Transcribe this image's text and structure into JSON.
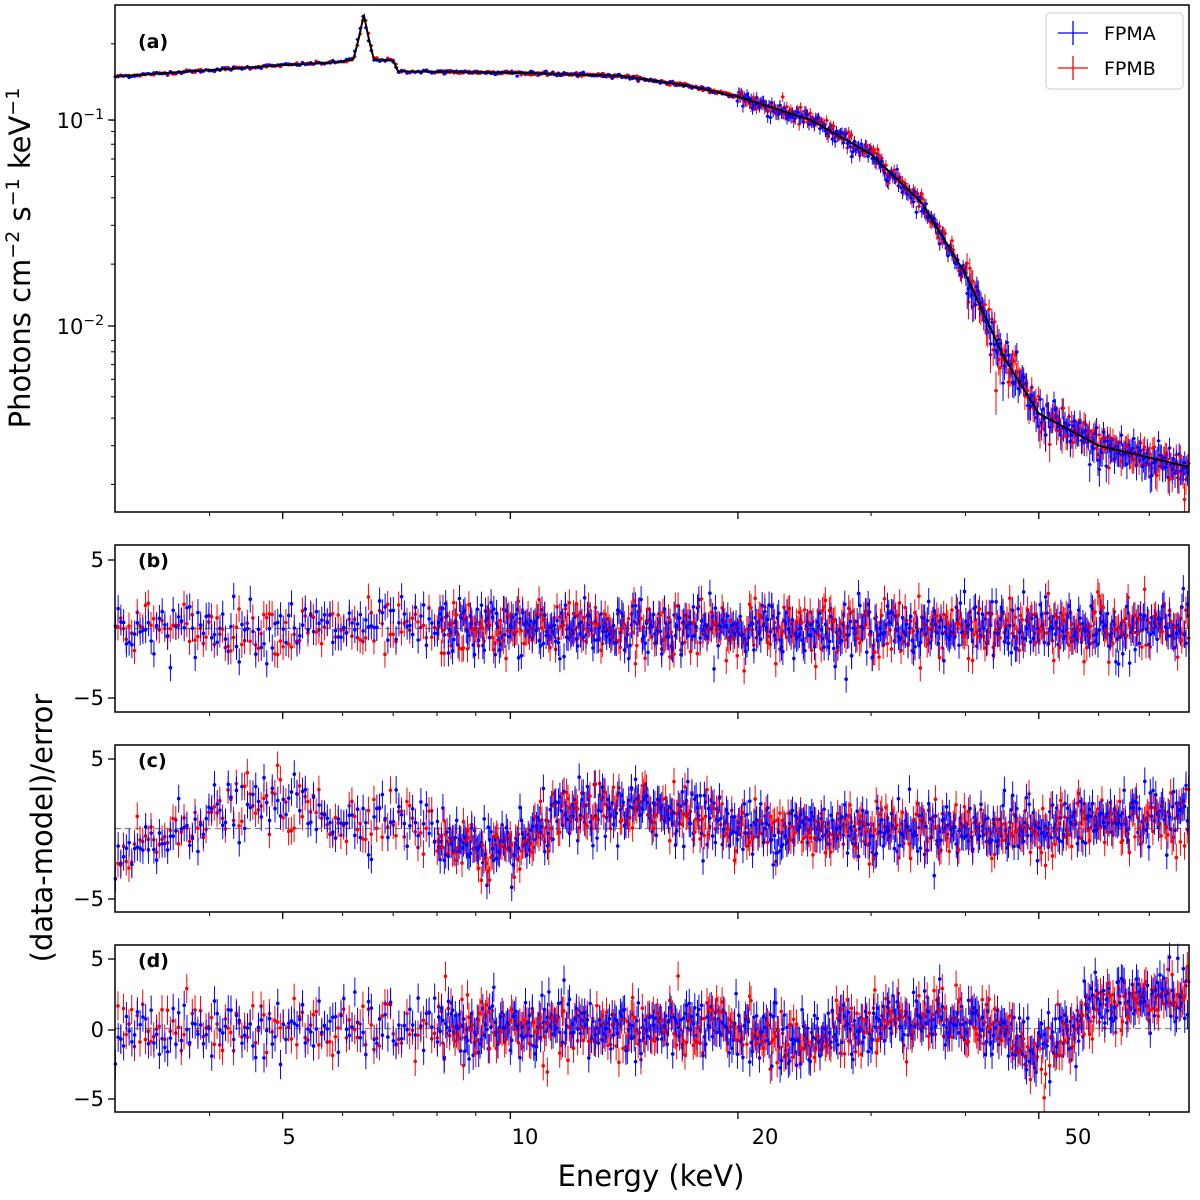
{
  "chart_data": {
    "type": "scatter",
    "xlabel": "Energy (keV)",
    "x_scale": "log",
    "xlim": [
      3,
      79
    ],
    "x_ticks": [
      {
        "value": 5,
        "label": "5"
      },
      {
        "value": 10,
        "label": "10"
      },
      {
        "value": 20,
        "label": "20"
      },
      {
        "value": 50,
        "label": "50"
      }
    ],
    "shared_ylabel": "(data-model)/error",
    "colors": {
      "FPMA": "#0000ff",
      "FPMB": "#ff0000",
      "model": "#000000",
      "zero_line": "#808080"
    },
    "legend": {
      "placement": "top-right",
      "entries": [
        "FPMA",
        "FPMB"
      ]
    },
    "panels": [
      {
        "id": "a",
        "letter": "(a)",
        "ylabel": "Photons cm$^{-2}$ s$^{-1}$ keV$^{-1}$",
        "ylabel_parts": {
          "base": "Photons cm",
          "e1": "−2",
          "mid": " s",
          "e2": "−1",
          "mid2": " keV",
          "e3": "−1"
        },
        "y_scale": "log",
        "ylim": [
          0.0015,
          0.3
        ],
        "y_ticks": [
          {
            "value": 0.1,
            "base": "10",
            "exp": "−1"
          },
          {
            "value": 0.01,
            "base": "10",
            "exp": "−2"
          }
        ],
        "model_points": [
          [
            3,
            0.142
          ],
          [
            4,
            0.152
          ],
          [
            5,
            0.16
          ],
          [
            5.9,
            0.165
          ],
          [
            6.2,
            0.17
          ],
          [
            6.3,
            0.21
          ],
          [
            6.4,
            0.27
          ],
          [
            6.5,
            0.21
          ],
          [
            6.6,
            0.17
          ],
          [
            7.0,
            0.168
          ],
          [
            7.1,
            0.15
          ],
          [
            10,
            0.148
          ],
          [
            14,
            0.143
          ],
          [
            17,
            0.13
          ],
          [
            20,
            0.115
          ],
          [
            25,
            0.09
          ],
          [
            30,
            0.063
          ],
          [
            35,
            0.038
          ],
          [
            40,
            0.018
          ],
          [
            45,
            0.0075
          ],
          [
            50,
            0.0042
          ],
          [
            60,
            0.003
          ],
          [
            79,
            0.0024
          ]
        ]
      },
      {
        "id": "b",
        "letter": "(b)",
        "y_scale": "linear",
        "ylim": [
          -6.2,
          6.2
        ],
        "y_ticks": [
          {
            "value": 5,
            "label": "5"
          },
          {
            "value": -5,
            "label": "−5"
          }
        ],
        "trend": [
          [
            3,
            0
          ],
          [
            79,
            0
          ]
        ],
        "scatter": 1.0
      },
      {
        "id": "c",
        "letter": "(c)",
        "y_scale": "linear",
        "ylim": [
          -6,
          6
        ],
        "y_ticks": [
          {
            "value": 5,
            "label": "5"
          },
          {
            "value": -5,
            "label": "−5"
          }
        ],
        "trend": [
          [
            3,
            -2.5
          ],
          [
            4,
            1.0
          ],
          [
            5,
            2.0
          ],
          [
            6,
            0.5
          ],
          [
            7,
            1.0
          ],
          [
            8,
            -0.5
          ],
          [
            10,
            -2.0
          ],
          [
            11,
            0
          ],
          [
            12,
            1.0
          ],
          [
            15,
            1.5
          ],
          [
            18,
            1.0
          ],
          [
            20,
            0
          ],
          [
            40,
            0
          ],
          [
            50,
            0
          ],
          [
            60,
            0.5
          ],
          [
            79,
            1.0
          ]
        ],
        "scatter": 1.0
      },
      {
        "id": "d",
        "letter": "(d)",
        "y_scale": "linear",
        "ylim": [
          -5.7,
          5.7
        ],
        "y_ticks": [
          {
            "value": 5,
            "label": "5"
          },
          {
            "value": 0,
            "label": "0"
          },
          {
            "value": -5,
            "label": "−5"
          }
        ],
        "trend": [
          [
            3,
            0
          ],
          [
            20,
            0
          ],
          [
            24,
            -1.0
          ],
          [
            28,
            0
          ],
          [
            33,
            0.8
          ],
          [
            40,
            0.8
          ],
          [
            46,
            -0.5
          ],
          [
            50,
            -2.0
          ],
          [
            55,
            0
          ],
          [
            60,
            1.5
          ],
          [
            79,
            2.5
          ]
        ],
        "scatter": 1.0
      }
    ],
    "series": [
      {
        "name": "FPMA"
      },
      {
        "name": "FPMB"
      }
    ]
  }
}
